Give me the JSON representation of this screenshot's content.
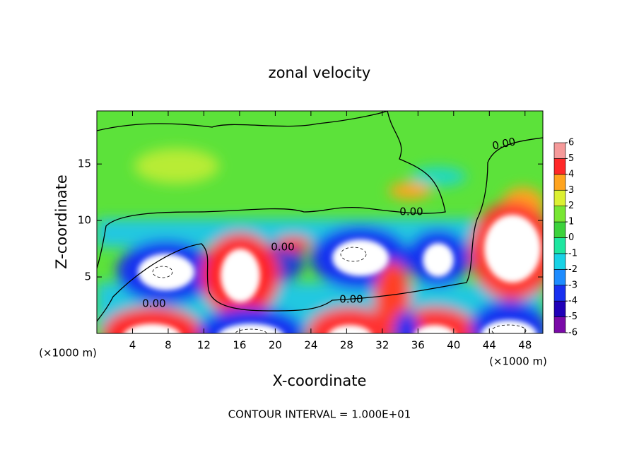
{
  "chart_data": {
    "type": "contour",
    "title": "zonal velocity",
    "x_label": "X-coordinate",
    "y_label": "Z-coordinate",
    "x_unit_labels": [
      "(×1000 m)",
      "(×1000 m)"
    ],
    "footer": "CONTOUR INTERVAL = 1.000E+01",
    "xlim": [
      0,
      50
    ],
    "xticks": [
      4,
      8,
      12,
      16,
      20,
      24,
      28,
      32,
      36,
      40,
      44,
      48
    ],
    "ylim": [
      0,
      19.7
    ],
    "yticks": [
      5,
      10,
      15
    ],
    "contour_labels": [
      "0.00",
      "0.00",
      "0.00",
      "0.00",
      "0.00"
    ],
    "colorbar": {
      "ticks": [
        -6,
        -5,
        -4,
        -3,
        -2,
        -1,
        0,
        1,
        2,
        3,
        4,
        5,
        6
      ],
      "colors": [
        "#7a0aa8",
        "#2000b8",
        "#1830f0",
        "#1e8cff",
        "#18d2e6",
        "#1ee6a0",
        "#3cd23c",
        "#78e632",
        "#dcf032",
        "#ffa41e",
        "#ff2828",
        "#f59a9a"
      ]
    }
  }
}
